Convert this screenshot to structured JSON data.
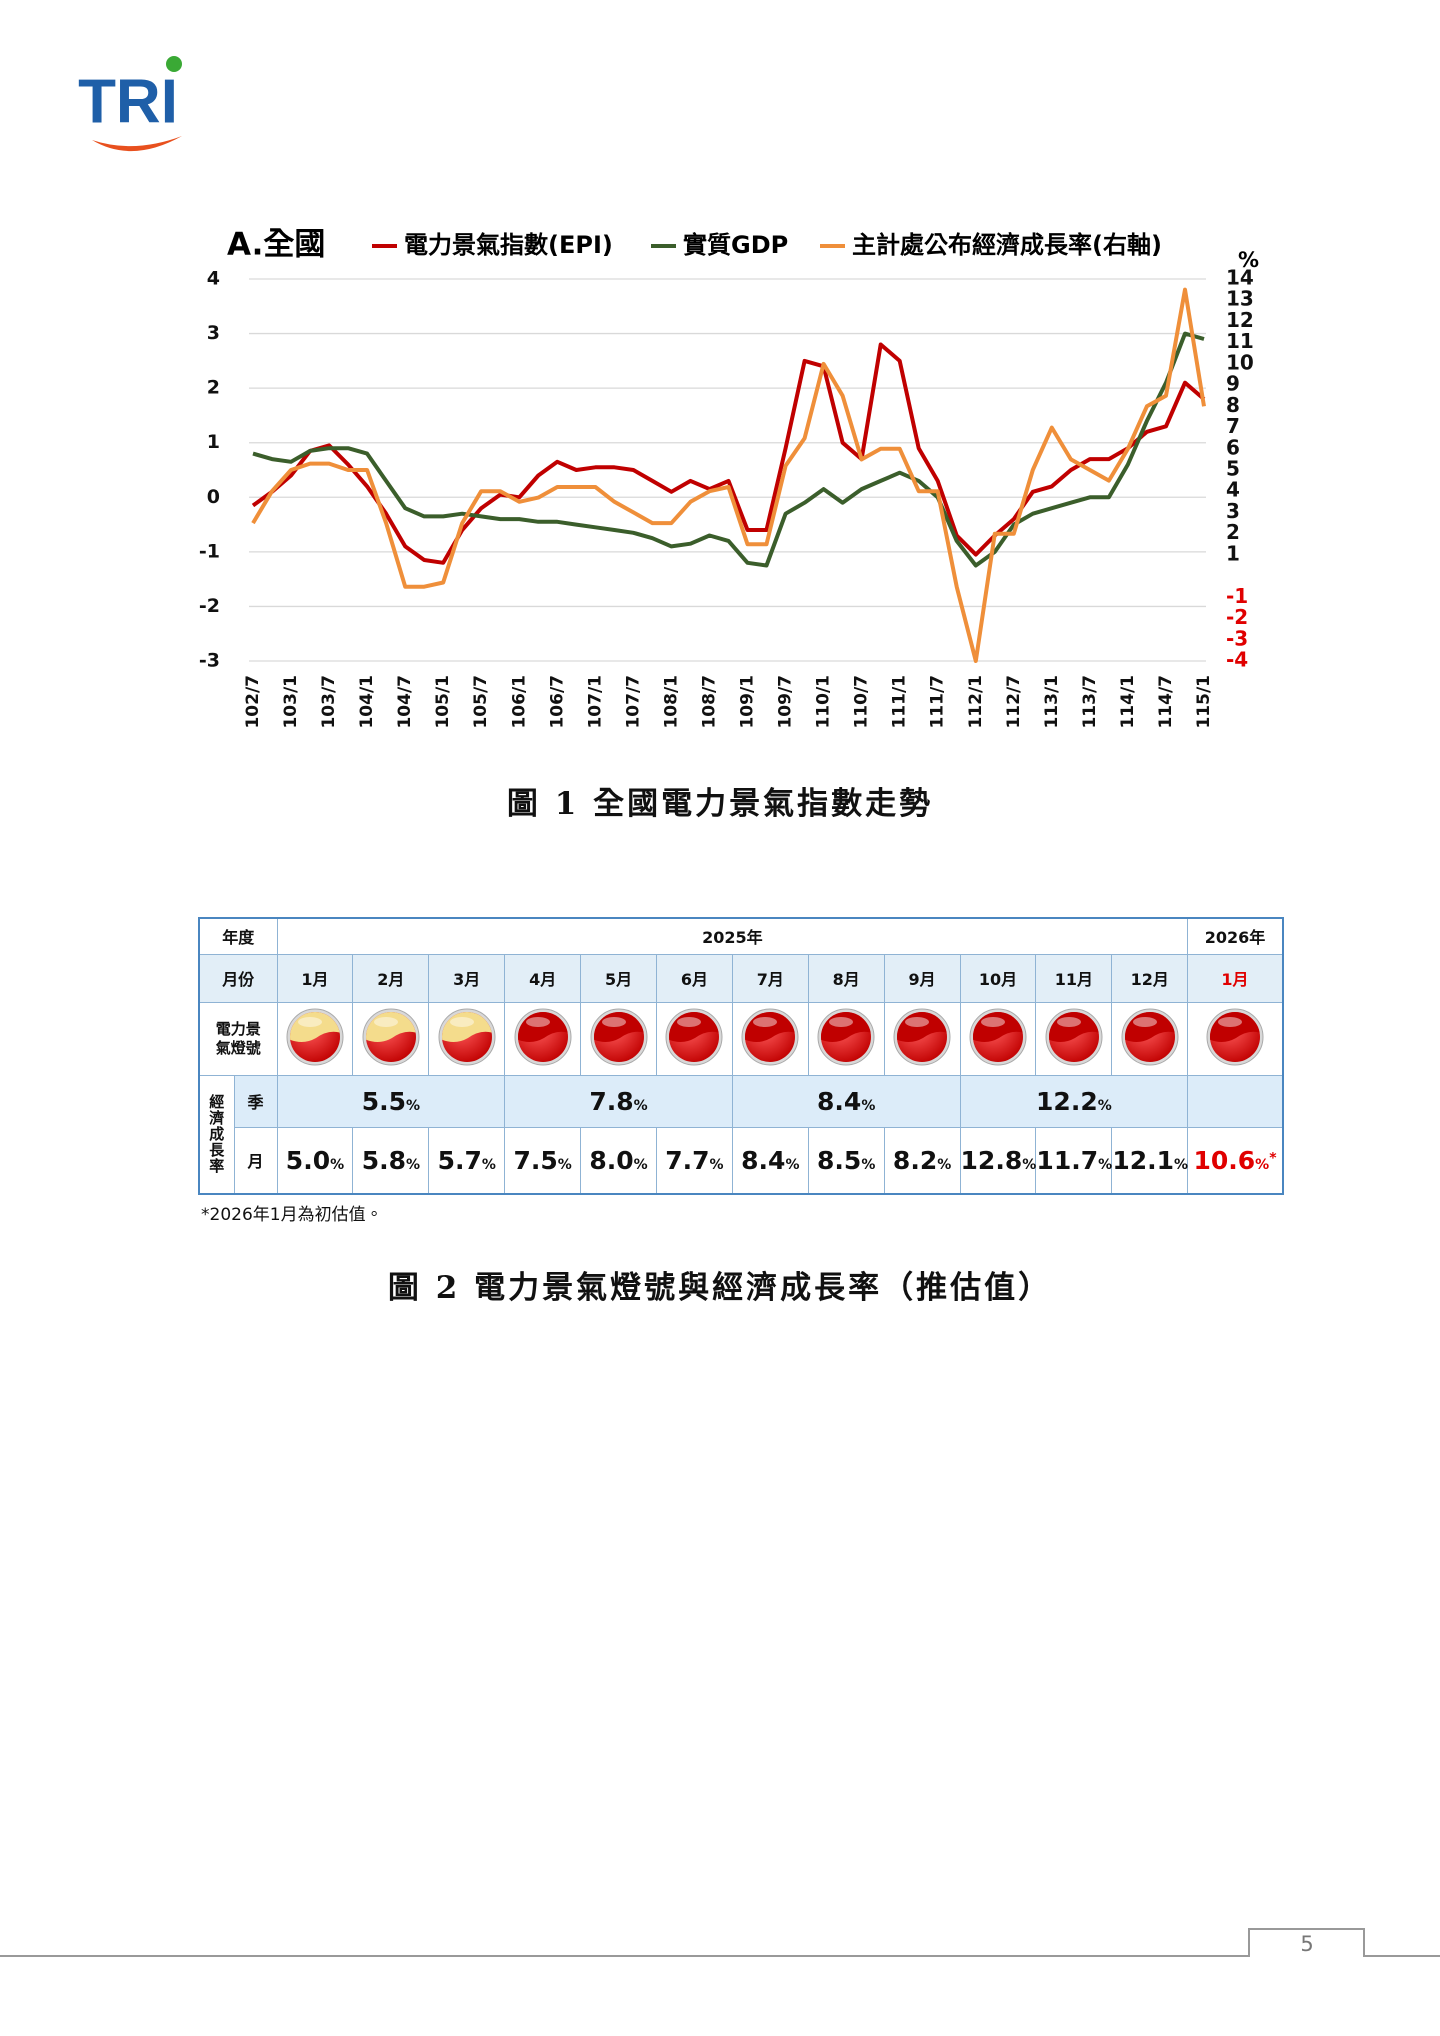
{
  "logo": {
    "text": "TRI"
  },
  "chart_data": {
    "type": "line",
    "title": "A.全國",
    "categories": [
      "102/7",
      null,
      "103/1",
      null,
      "103/7",
      null,
      "104/1",
      null,
      "104/7",
      null,
      "105/1",
      null,
      "105/7",
      null,
      "106/1",
      null,
      "106/7",
      null,
      "107/1",
      null,
      "107/7",
      null,
      "108/1",
      null,
      "108/7",
      null,
      "109/1",
      null,
      "109/7",
      null,
      "110/1",
      null,
      "110/7",
      null,
      "111/1",
      null,
      "111/7",
      null,
      "112/1",
      null,
      "112/7",
      null,
      "113/1",
      null,
      "113/7",
      null,
      "114/1",
      null,
      "114/7",
      null,
      "115/1"
    ],
    "series": [
      {
        "name": "電力景氣指數(EPI)",
        "color": "#c00000",
        "values": [
          -0.15,
          0.1,
          0.4,
          0.85,
          0.95,
          0.6,
          0.2,
          -0.3,
          -0.9,
          -1.15,
          -1.2,
          -0.6,
          -0.2,
          0.05,
          0.0,
          0.4,
          0.65,
          0.5,
          0.55,
          0.55,
          0.5,
          0.3,
          0.1,
          0.3,
          0.15,
          0.3,
          -0.6,
          -0.6,
          0.9,
          2.5,
          2.4,
          1.0,
          0.7,
          2.8,
          2.5,
          0.9,
          0.3,
          -0.7,
          -1.05,
          -0.7,
          -0.4,
          0.1,
          0.2,
          0.5,
          0.7,
          0.7,
          0.9,
          1.2,
          1.3,
          2.1,
          1.8
        ]
      },
      {
        "name": "實質GDP",
        "color": "#3b5e2b",
        "values": [
          0.8,
          0.7,
          0.65,
          0.85,
          0.9,
          0.9,
          0.8,
          0.3,
          -0.2,
          -0.35,
          -0.35,
          -0.3,
          -0.35,
          -0.4,
          -0.4,
          -0.45,
          -0.45,
          -0.5,
          -0.55,
          -0.6,
          -0.65,
          -0.75,
          -0.9,
          -0.85,
          -0.7,
          -0.8,
          -1.2,
          -1.25,
          -0.3,
          -0.1,
          0.15,
          -0.1,
          0.15,
          0.3,
          0.45,
          0.3,
          0.0,
          -0.8,
          -1.25,
          -1.0,
          -0.5,
          -0.3,
          -0.2,
          -0.1,
          0.0,
          0.0,
          0.6,
          1.4,
          2.1,
          3.0,
          2.9
        ]
      },
      {
        "name": "主計處公布經濟成長率(右軸)",
        "color": "#ef8f3a",
        "axis": "y2",
        "values": [
          2.5,
          4,
          5,
          5.3,
          5.3,
          5,
          5,
          2.5,
          -0.5,
          -0.5,
          -0.3,
          2.5,
          4,
          4,
          3.5,
          3.7,
          4.2,
          4.2,
          4.2,
          3.5,
          3,
          2.5,
          2.5,
          3.5,
          4,
          4.2,
          1.5,
          1.5,
          5.2,
          6.5,
          10,
          8.5,
          5.5,
          6,
          6,
          4,
          4,
          -0.5,
          -4,
          2,
          2,
          5,
          7,
          5.5,
          5,
          4.5,
          6,
          8,
          8.5,
          13.5,
          8
        ]
      }
    ],
    "ylim": [
      -3,
      4
    ],
    "yticks": [
      4,
      3,
      2,
      1,
      0,
      -1,
      -2,
      -3
    ],
    "y2lim": [
      -4,
      14
    ],
    "y2ticks": [
      14,
      13,
      12,
      11,
      10,
      9,
      8,
      7,
      6,
      5,
      4,
      3,
      2,
      1,
      -1,
      -2,
      -3,
      -4
    ],
    "y2_label": "%",
    "y2_negative_tick_color": "#e00000",
    "tick_color": "#111111",
    "grid": true
  },
  "figure1_caption": "圖 1  全國電力景氣指數走勢",
  "table": {
    "year_label": "年度",
    "years": [
      "2025年",
      "2026年"
    ],
    "month_label": "月份",
    "months": [
      "1月",
      "2月",
      "3月",
      "4月",
      "5月",
      "6月",
      "7月",
      "8月",
      "9月",
      "10月",
      "11月",
      "12月",
      "1月"
    ],
    "signal_label": [
      "電力景",
      "氣燈號"
    ],
    "signals": [
      {
        "top": "#f4dc8c",
        "bottom": "#c00000"
      },
      {
        "top": "#f4dc8c",
        "bottom": "#c00000"
      },
      {
        "top": "#f4dc8c",
        "bottom": "#c00000"
      },
      {
        "top": "#c00000",
        "bottom": "#c00000"
      },
      {
        "top": "#c00000",
        "bottom": "#c00000"
      },
      {
        "top": "#c00000",
        "bottom": "#c00000"
      },
      {
        "top": "#c00000",
        "bottom": "#c00000"
      },
      {
        "top": "#c00000",
        "bottom": "#c00000"
      },
      {
        "top": "#c00000",
        "bottom": "#c00000"
      },
      {
        "top": "#c00000",
        "bottom": "#c00000"
      },
      {
        "top": "#c00000",
        "bottom": "#c00000"
      },
      {
        "top": "#c00000",
        "bottom": "#c00000"
      },
      {
        "top": "#c00000",
        "bottom": "#c00000"
      }
    ],
    "growth_label": "經濟成長率",
    "quarter_label": "季",
    "month_row_label": "月",
    "quarterly": [
      "5.5",
      "7.8",
      "8.4",
      "12.2"
    ],
    "monthly": [
      "5.0",
      "5.8",
      "5.7",
      "7.5",
      "8.0",
      "7.7",
      "8.4",
      "8.5",
      "8.2",
      "12.8",
      "11.7",
      "12.1",
      "10.6"
    ],
    "unit": "%",
    "preliminary_mark": "*",
    "highlight_color": "#e00000"
  },
  "table_note": "*2026年1月為初估值。",
  "figure2_caption": "圖 2  電力景氣燈號與經濟成長率（推估值）",
  "page_number": "5"
}
